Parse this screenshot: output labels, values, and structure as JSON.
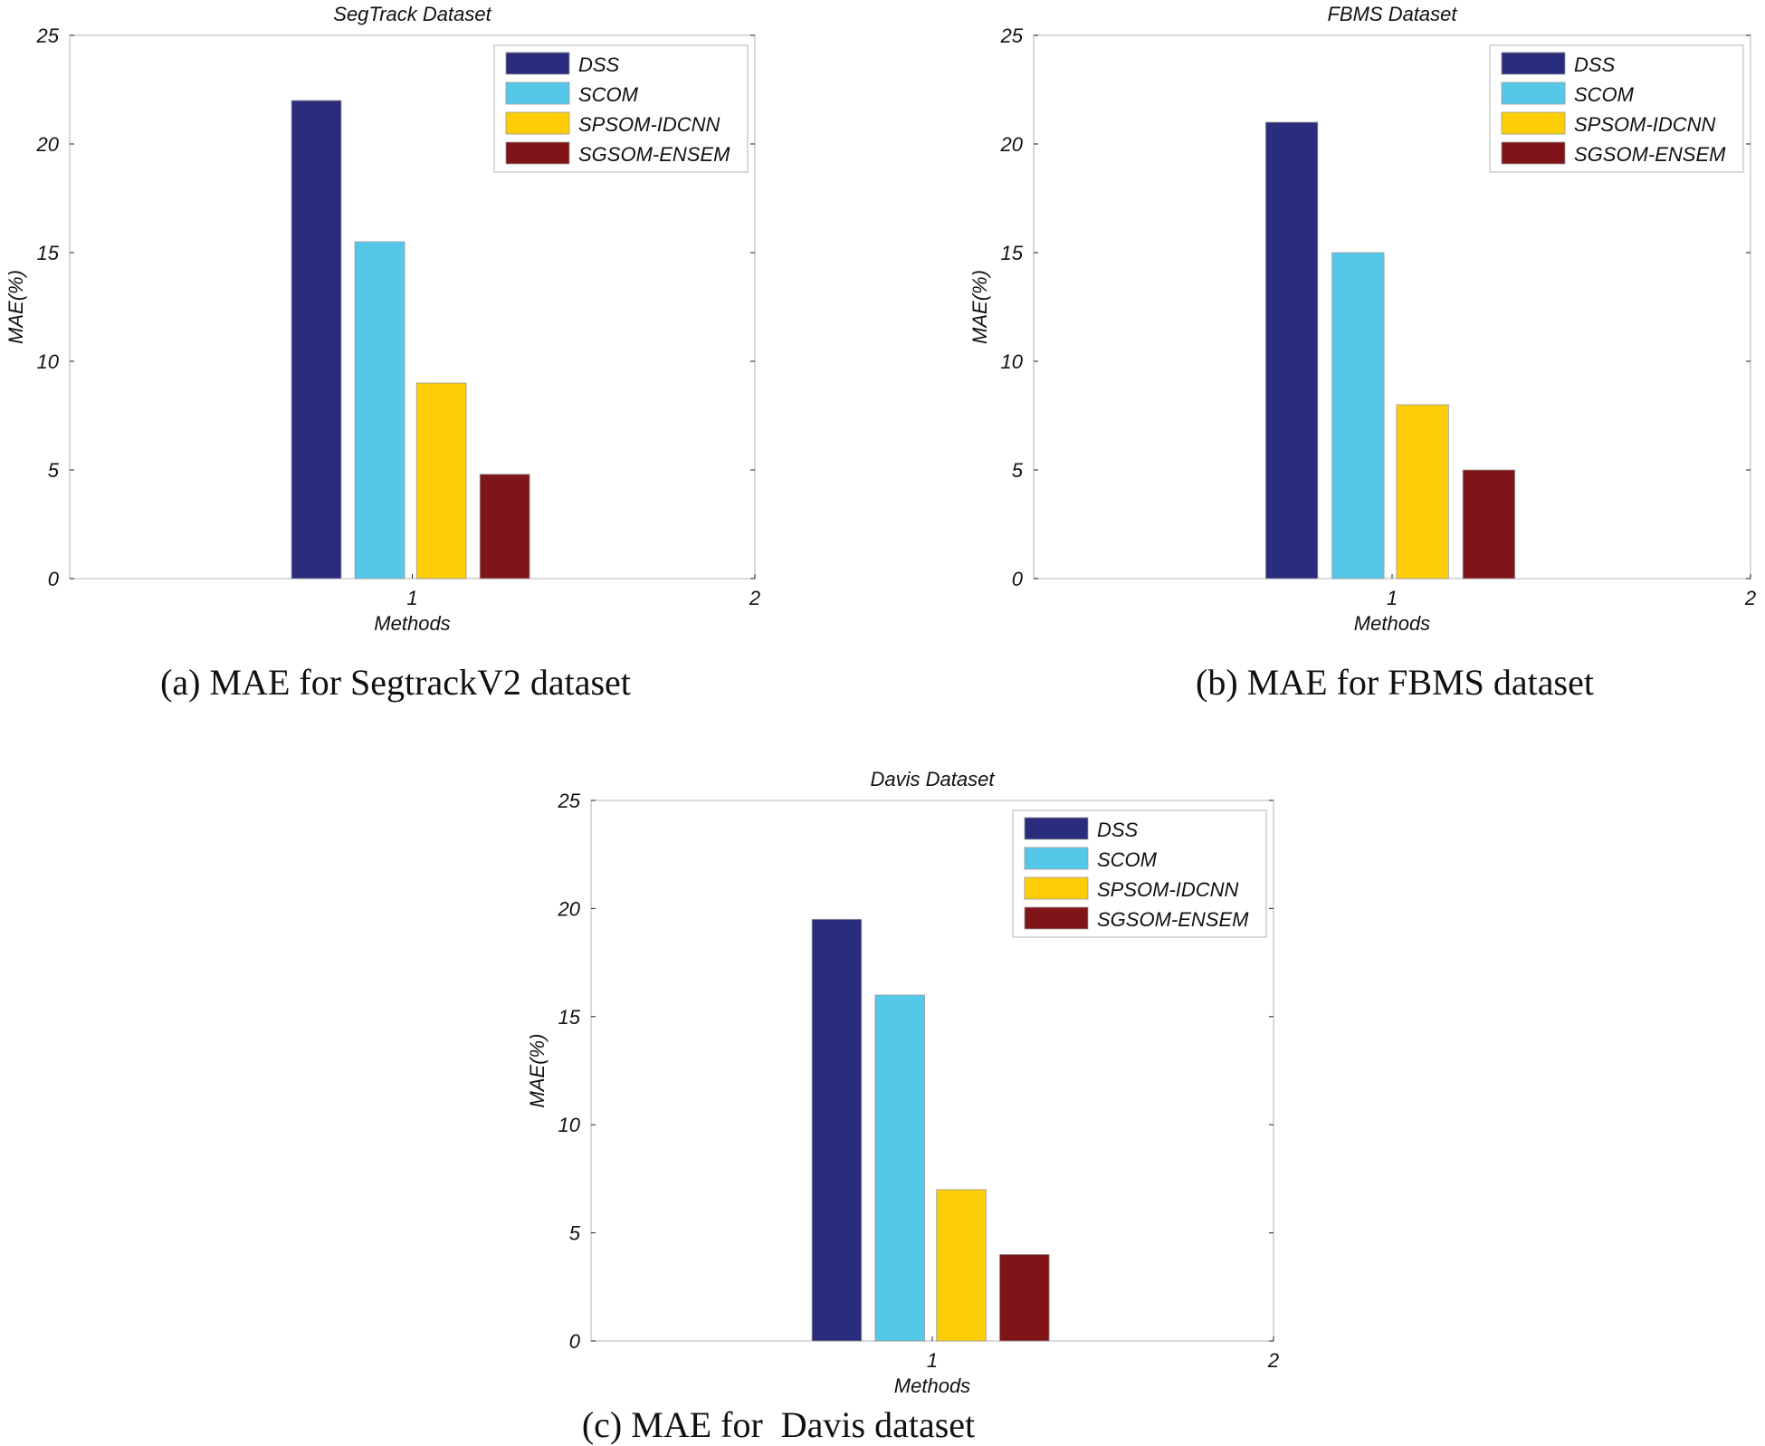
{
  "colors": {
    "DSS": "#2a2d7e",
    "SCOM": "#55c8e9",
    "SPSOM-IDCNN": "#fdce08",
    "SGSOM-ENSEM": "#7f1518",
    "axis": "#c0c0c0"
  },
  "chart_data": [
    {
      "type": "bar",
      "title": "SegTrack  Dataset",
      "xlabel": "Methods",
      "ylabel": "MAE(%)",
      "caption": "(a) MAE for SegtrackV2 dataset",
      "xlim": [
        0,
        2
      ],
      "ylim": [
        0,
        25
      ],
      "xticks": [
        "1",
        "2"
      ],
      "yticks": [
        "0",
        "5",
        "10",
        "15",
        "20",
        "25"
      ],
      "legend_position": "top-right",
      "categories": [
        "1"
      ],
      "series": [
        {
          "name": "DSS",
          "values": [
            22
          ]
        },
        {
          "name": "SCOM",
          "values": [
            15.5
          ]
        },
        {
          "name": "SPSOM-IDCNN",
          "values": [
            9
          ]
        },
        {
          "name": "SGSOM-ENSEM",
          "values": [
            4.8
          ]
        }
      ]
    },
    {
      "type": "bar",
      "title": "FBMS  Dataset",
      "xlabel": "Methods",
      "ylabel": "MAE(%)",
      "caption": "(b) MAE for FBMS dataset",
      "xlim": [
        0,
        2
      ],
      "ylim": [
        0,
        25
      ],
      "xticks": [
        "1",
        "2"
      ],
      "yticks": [
        "0",
        "5",
        "10",
        "15",
        "20",
        "25"
      ],
      "legend_position": "top-right",
      "categories": [
        "1"
      ],
      "series": [
        {
          "name": "DSS",
          "values": [
            21
          ]
        },
        {
          "name": "SCOM",
          "values": [
            15
          ]
        },
        {
          "name": "SPSOM-IDCNN",
          "values": [
            8
          ]
        },
        {
          "name": "SGSOM-ENSEM",
          "values": [
            5
          ]
        }
      ]
    },
    {
      "type": "bar",
      "title": "Davis  Dataset",
      "xlabel": "Methods",
      "ylabel": "MAE(%)",
      "caption": "(c) MAE for  Davis dataset",
      "xlim": [
        0,
        2
      ],
      "ylim": [
        0,
        25
      ],
      "xticks": [
        "1",
        "2"
      ],
      "yticks": [
        "0",
        "5",
        "10",
        "15",
        "20",
        "25"
      ],
      "legend_position": "top-right",
      "categories": [
        "1"
      ],
      "series": [
        {
          "name": "DSS",
          "values": [
            19.5
          ]
        },
        {
          "name": "SCOM",
          "values": [
            16
          ]
        },
        {
          "name": "SPSOM-IDCNN",
          "values": [
            7
          ]
        },
        {
          "name": "SGSOM-ENSEM",
          "values": [
            4
          ]
        }
      ]
    }
  ]
}
